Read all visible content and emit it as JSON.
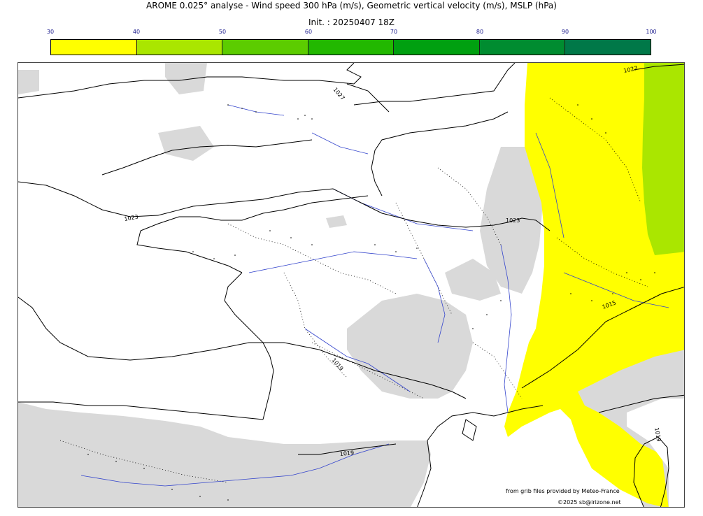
{
  "header": {
    "title": "AROME 0.025° analyse - Wind speed 300 hPa (m/s), Geometric vertical velocity (m/s), MSLP (hPa)",
    "init": "Init. : 20250407 18Z"
  },
  "colorbar": {
    "ticks": [
      "30",
      "40",
      "50",
      "60",
      "70",
      "80",
      "90",
      "100"
    ],
    "colors": [
      "#ffff00",
      "#aae600",
      "#5ccc00",
      "#22b800",
      "#00a010",
      "#008c30",
      "#007848"
    ]
  },
  "map": {
    "land_color": "#ffffff",
    "orography_shade": "#d9d9d9",
    "coast_color": "#000000",
    "river_color": "#3344cc",
    "jet_colors": {
      "band_30_40": "#ffff00",
      "band_40_50": "#aae600"
    },
    "isobars": [
      {
        "label": "1027"
      },
      {
        "label": "1027"
      },
      {
        "label": "1023"
      },
      {
        "label": "1023"
      },
      {
        "label": "1019"
      },
      {
        "label": "1019"
      },
      {
        "label": "1019"
      },
      {
        "label": "1015"
      }
    ]
  },
  "credits": {
    "source": "from grib files provided by Meteo-France",
    "copyright": "©2025 sb@irizone.net"
  }
}
